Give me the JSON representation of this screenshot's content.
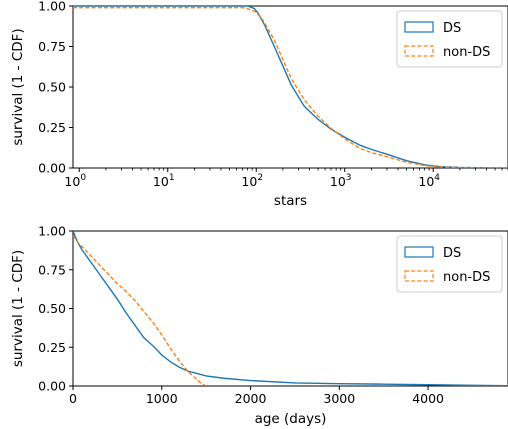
{
  "colors": {
    "DS": "#1f77b4",
    "non-DS": "#ff7f0e"
  },
  "chart_data": [
    {
      "type": "line",
      "xscale": "log",
      "xlabel": "stars",
      "ylabel": "survival (1 - CDF)",
      "xlim": [
        0.85,
        70000
      ],
      "ylim": [
        0.0,
        1.0
      ],
      "xticks": [
        {
          "value": 1,
          "base": "10",
          "exp": "0"
        },
        {
          "value": 10,
          "base": "10",
          "exp": "1"
        },
        {
          "value": 100,
          "base": "10",
          "exp": "2"
        },
        {
          "value": 1000,
          "base": "10",
          "exp": "3"
        },
        {
          "value": 10000,
          "base": "10",
          "exp": "4"
        }
      ],
      "yticks": [
        "0.00",
        "0.25",
        "0.50",
        "0.75",
        "1.00"
      ],
      "legend": {
        "position": "top-right",
        "entries": [
          "DS",
          "non-DS"
        ]
      },
      "series": [
        {
          "name": "DS",
          "style": "solid",
          "x": [
            0.85,
            80,
            95,
            105,
            125,
            160,
            200,
            250,
            350,
            500,
            700,
            1000,
            1500,
            2000,
            3000,
            5000,
            8000,
            12000,
            20000,
            40000,
            70000
          ],
          "y": [
            1.0,
            1.0,
            0.985,
            0.955,
            0.88,
            0.75,
            0.63,
            0.51,
            0.38,
            0.3,
            0.24,
            0.19,
            0.14,
            0.115,
            0.085,
            0.045,
            0.02,
            0.008,
            0.003,
            0.001,
            0.0
          ]
        },
        {
          "name": "non-DS",
          "style": "dashed",
          "x": [
            0.85,
            70,
            90,
            100,
            120,
            160,
            200,
            250,
            350,
            500,
            700,
            1000,
            1500,
            2000,
            3000,
            5000,
            8000,
            12000,
            20000,
            40000,
            70000
          ],
          "y": [
            0.99,
            0.99,
            0.975,
            0.96,
            0.91,
            0.79,
            0.67,
            0.55,
            0.42,
            0.32,
            0.245,
            0.18,
            0.12,
            0.095,
            0.07,
            0.035,
            0.015,
            0.006,
            0.002,
            0.0,
            0.0
          ]
        }
      ]
    },
    {
      "type": "line",
      "xscale": "linear",
      "xlabel": "age (days)",
      "ylabel": "survival (1 - CDF)",
      "xlim": [
        0,
        4900
      ],
      "ylim": [
        0.0,
        1.0
      ],
      "xticks": [
        {
          "value": 0,
          "label": "0"
        },
        {
          "value": 1000,
          "label": "1000"
        },
        {
          "value": 2000,
          "label": "2000"
        },
        {
          "value": 3000,
          "label": "3000"
        },
        {
          "value": 4000,
          "label": "4000"
        }
      ],
      "yticks": [
        "0.00",
        "0.25",
        "0.50",
        "0.75",
        "1.00"
      ],
      "legend": {
        "position": "top-right",
        "entries": [
          "DS",
          "non-DS"
        ]
      },
      "series": [
        {
          "name": "DS",
          "style": "solid",
          "x": [
            0,
            50,
            100,
            200,
            300,
            400,
            500,
            600,
            700,
            800,
            900,
            1000,
            1100,
            1200,
            1300,
            1400,
            1500,
            1700,
            2000,
            2500,
            3000,
            3500,
            4000,
            4500,
            4900
          ],
          "y": [
            1.0,
            0.93,
            0.88,
            0.8,
            0.72,
            0.64,
            0.56,
            0.47,
            0.39,
            0.31,
            0.26,
            0.2,
            0.155,
            0.12,
            0.095,
            0.08,
            0.065,
            0.05,
            0.035,
            0.02,
            0.015,
            0.012,
            0.008,
            0.004,
            0.002
          ]
        },
        {
          "name": "non-DS",
          "style": "dashed",
          "x": [
            0,
            50,
            100,
            200,
            300,
            400,
            500,
            600,
            700,
            800,
            900,
            1000,
            1100,
            1200,
            1300,
            1400,
            1450,
            1500
          ],
          "y": [
            0.97,
            0.93,
            0.9,
            0.84,
            0.78,
            0.72,
            0.66,
            0.61,
            0.55,
            0.48,
            0.41,
            0.33,
            0.24,
            0.16,
            0.09,
            0.04,
            0.015,
            0.0
          ]
        }
      ]
    }
  ]
}
